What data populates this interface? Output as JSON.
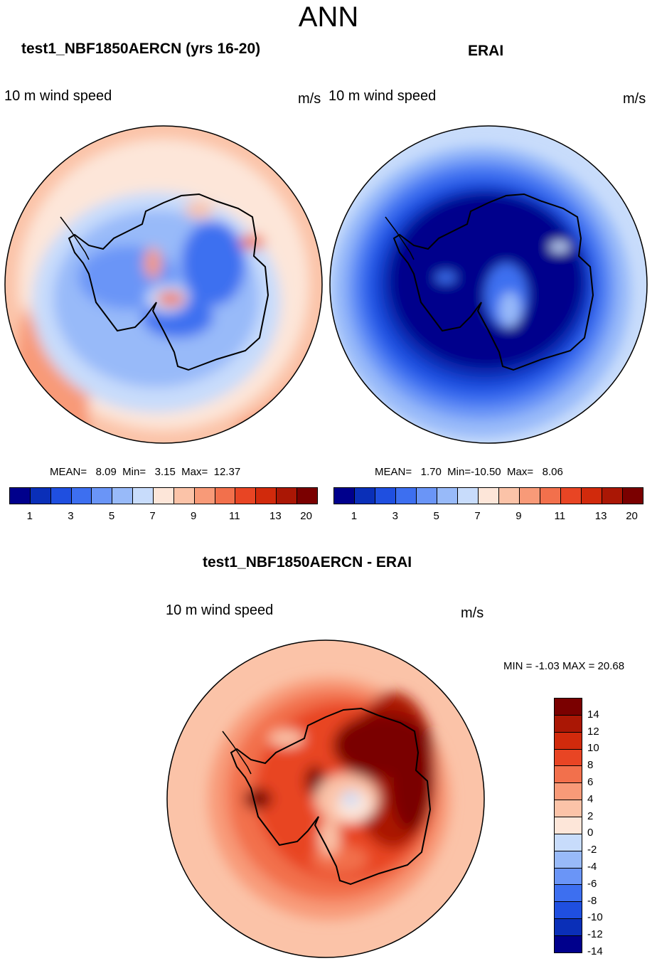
{
  "title": "ANN",
  "panels": {
    "model": {
      "title": "test1_NBF1850AERCN (yrs 16-20)",
      "variable": "10 m wind speed",
      "units": "m/s",
      "stats": {
        "mean_label": "MEAN=",
        "mean": "8.09",
        "min_label": "Min=",
        "min": "3.15",
        "max_label": "Max=",
        "max": "12.37"
      }
    },
    "obs": {
      "title": "ERAI",
      "variable": "10 m wind speed",
      "units": "m/s",
      "stats": {
        "mean_label": "MEAN=",
        "mean": "1.70",
        "min_label": "Min=",
        "min": "-10.50",
        "max_label": "Max=",
        "max": "8.06"
      }
    },
    "diff": {
      "title": "test1_NBF1850AERCN - ERAI",
      "variable": "10 m wind speed",
      "units": "m/s",
      "stats_line": "MIN =  -1.03 MAX =  20.68"
    }
  },
  "colorbar_top": {
    "colors": [
      "#00008c",
      "#0a2fb8",
      "#1f4fe0",
      "#3d6ff0",
      "#6a95f7",
      "#98baf9",
      "#c8dcfb",
      "#fde6d9",
      "#fbc3a8",
      "#f89a78",
      "#f2704c",
      "#e84524",
      "#d12a0c",
      "#aa1705",
      "#7a0000"
    ],
    "tick_labels": [
      "1",
      "3",
      "5",
      "7",
      "9",
      "11",
      "13",
      "20"
    ]
  },
  "colorbar_diff": {
    "colors": [
      "#7a0000",
      "#aa1705",
      "#d12a0c",
      "#e84524",
      "#f2704c",
      "#f89a78",
      "#fbc3a8",
      "#fde6d9",
      "#c8dcfb",
      "#98baf9",
      "#6a95f7",
      "#3d6ff0",
      "#1f4fe0",
      "#0a2fb8",
      "#00008c"
    ],
    "tick_labels": [
      "14",
      "12",
      "10",
      "8",
      "6",
      "4",
      "2",
      "0",
      "-2",
      "-4",
      "-6",
      "-8",
      "-10",
      "-12",
      "-14"
    ]
  }
}
